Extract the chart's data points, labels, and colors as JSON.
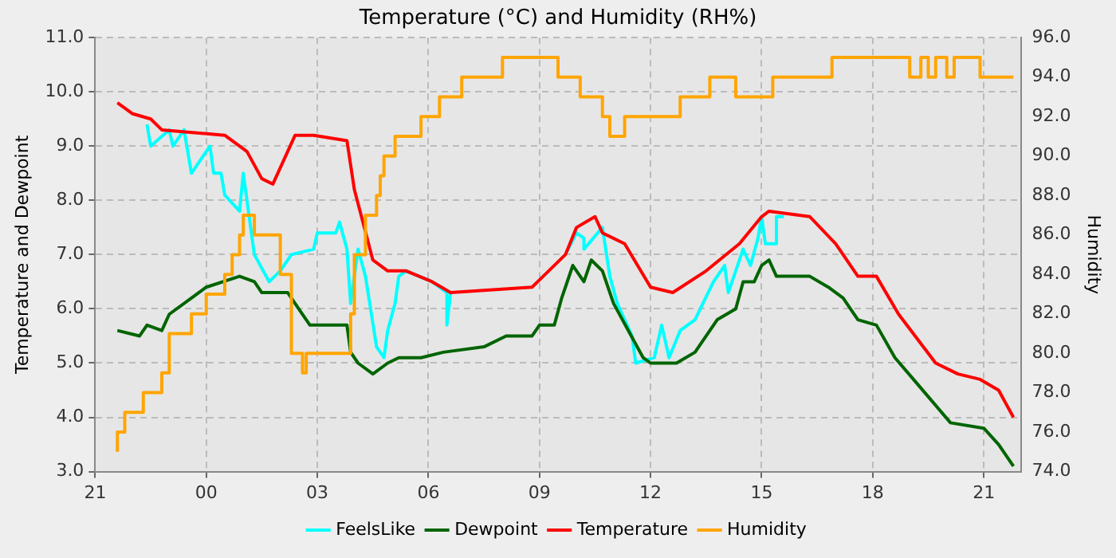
{
  "chart_data": {
    "type": "line",
    "title": "Temperature (°C) and Humidity (RH%)",
    "ylabel": "Temperature and Dewpoint",
    "y2label": "Humidity",
    "xlim": [
      "--01-01T21:00",
      "--01-02T22:00"
    ],
    "xticks": [
      {
        "value": "--01-01T21:00",
        "label": "21"
      },
      {
        "value": "--01-02T00:00",
        "label": "00"
      },
      {
        "value": "--01-02T03:00",
        "label": "03"
      },
      {
        "value": "--01-02T06:00",
        "label": "06"
      },
      {
        "value": "--01-02T09:00",
        "label": "09"
      },
      {
        "value": "--01-02T12:00",
        "label": "12"
      },
      {
        "value": "--01-02T15:00",
        "label": "15"
      },
      {
        "value": "--01-02T18:00",
        "label": "18"
      },
      {
        "value": "--01-02T21:00",
        "label": "21"
      }
    ],
    "ylim": [
      3,
      11
    ],
    "yticks": [
      {
        "value": 3,
        "label": "3.0"
      },
      {
        "value": 4,
        "label": "4.0"
      },
      {
        "value": 5,
        "label": "5.0"
      },
      {
        "value": 6,
        "label": "6.0"
      },
      {
        "value": 7,
        "label": "7.0"
      },
      {
        "value": 8,
        "label": "8.0"
      },
      {
        "value": 9,
        "label": "9.0"
      },
      {
        "value": 10,
        "label": "10.0"
      },
      {
        "value": 11,
        "label": "11.0"
      }
    ],
    "y2lim": [
      74,
      96
    ],
    "y2ticks": [
      {
        "value": 74,
        "label": "74.0"
      },
      {
        "value": 76,
        "label": "76.0"
      },
      {
        "value": 78,
        "label": "78.0"
      },
      {
        "value": 80,
        "label": "80.0"
      },
      {
        "value": 82,
        "label": "82.0"
      },
      {
        "value": 84,
        "label": "84.0"
      },
      {
        "value": 86,
        "label": "86.0"
      },
      {
        "value": 88,
        "label": "88.0"
      },
      {
        "value": 90,
        "label": "90.0"
      },
      {
        "value": 92,
        "label": "92.0"
      },
      {
        "value": 94,
        "label": "94.0"
      },
      {
        "value": 96,
        "label": "96.0"
      }
    ],
    "grid": true,
    "legend": "bottom",
    "marker": "none",
    "series": [
      {
        "name": "FeelsLike",
        "color": "#00ffff",
        "x": [
          "--01-01T22:24",
          "--01-01T22:30",
          "--01-01T23:00",
          "--01-01T23:06",
          "--01-01T23:24",
          "--01-01T23:36",
          "--01-02T00:06",
          "--01-02T00:12",
          "--01-02T00:24",
          "--01-02T00:30",
          "--01-02T00:54",
          "--01-02T01:00",
          "--01-02T01:18",
          "--01-02T01:42",
          "--01-02T02:00",
          "--01-02T02:18",
          "--01-02T02:54",
          "--01-02T03:00",
          "--01-02T03:30",
          "--01-02T03:36",
          "--01-02T03:48",
          "--01-02T03:54",
          "--01-02T04:06",
          "--01-02T04:18",
          "--01-02T04:36",
          "--01-02T04:48",
          "--01-02T04:54",
          "--01-02T05:06",
          "--01-02T05:12",
          "--01-02T05:24",
          "--01-02T06:06",
          "--01-02T06:30",
          "--01-02T06:30",
          "--01-02T06:36",
          "--01-02T08:48",
          "--01-02T09:06",
          "--01-02T09:42",
          "--01-02T10:00",
          "--01-02T10:12",
          "--01-02T10:12",
          "--01-02T10:42",
          "--01-02T10:54",
          "--01-02T11:06",
          "--01-02T11:30",
          "--01-02T11:36",
          "--01-02T12:06",
          "--01-02T12:18",
          "--01-02T12:30",
          "--01-02T12:48",
          "--01-02T13:12",
          "--01-02T13:42",
          "--01-02T14:00",
          "--01-02T14:06",
          "--01-02T14:30",
          "--01-02T14:42",
          "--01-02T14:54",
          "--01-02T15:00",
          "--01-02T15:06",
          "--01-02T15:24",
          "--01-02T15:24",
          "--01-02T15:36"
        ],
        "values": [
          9.4,
          9.0,
          9.3,
          9.0,
          9.3,
          8.5,
          9.0,
          8.5,
          8.5,
          8.1,
          7.8,
          8.5,
          7.0,
          6.5,
          6.7,
          7.0,
          7.1,
          7.4,
          7.4,
          7.6,
          7.1,
          6.1,
          7.1,
          6.6,
          5.3,
          5.1,
          5.6,
          6.1,
          6.6,
          6.7,
          6.5,
          6.3,
          5.7,
          6.3,
          null,
          null,
          7.0,
          7.4,
          7.3,
          7.1,
          7.5,
          6.6,
          6.1,
          5.5,
          5.0,
          5.1,
          5.7,
          5.1,
          5.6,
          5.8,
          6.5,
          6.8,
          6.3,
          7.1,
          6.8,
          7.3,
          7.7,
          7.2,
          7.2,
          7.7,
          7.7
        ]
      },
      {
        "name": "Dewpoint",
        "color": "#006400",
        "x": [
          "--01-01T21:36",
          "--01-01T22:12",
          "--01-01T22:24",
          "--01-01T22:48",
          "--01-01T23:00",
          "--01-01T23:36",
          "--01-02T00:00",
          "--01-02T00:54",
          "--01-02T01:18",
          "--01-02T01:30",
          "--01-02T02:12",
          "--01-02T02:36",
          "--01-02T02:48",
          "--01-02T03:48",
          "--01-02T03:54",
          "--01-02T04:06",
          "--01-02T04:30",
          "--01-02T04:54",
          "--01-02T05:12",
          "--01-02T05:48",
          "--01-02T06:24",
          "--01-02T07:30",
          "--01-02T08:06",
          "--01-02T08:48",
          "--01-02T09:00",
          "--01-02T09:24",
          "--01-02T09:36",
          "--01-02T09:54",
          "--01-02T10:12",
          "--01-02T10:24",
          "--01-02T10:42",
          "--01-02T11:00",
          "--01-02T11:24",
          "--01-02T11:48",
          "--01-02T12:00",
          "--01-02T12:42",
          "--01-02T13:12",
          "--01-02T13:48",
          "--01-02T14:18",
          "--01-02T14:30",
          "--01-02T14:48",
          "--01-02T15:00",
          "--01-02T15:12",
          "--01-02T15:24",
          "--01-02T16:18",
          "--01-02T16:48",
          "--01-02T17:12",
          "--01-02T17:36",
          "--01-02T18:06",
          "--01-02T18:36",
          "--01-02T19:06",
          "--01-02T19:36",
          "--01-02T20:06",
          "--01-02T21:00",
          "--01-02T21:24",
          "--01-02T21:48"
        ],
        "values": [
          5.6,
          5.5,
          5.7,
          5.6,
          5.9,
          6.2,
          6.4,
          6.6,
          6.5,
          6.3,
          6.3,
          5.9,
          5.7,
          5.7,
          5.2,
          5.0,
          4.8,
          5.0,
          5.1,
          5.1,
          5.2,
          5.3,
          5.5,
          5.5,
          5.7,
          5.7,
          6.2,
          6.8,
          6.5,
          6.9,
          6.7,
          6.1,
          5.6,
          5.1,
          5.0,
          5.0,
          5.2,
          5.8,
          6.0,
          6.5,
          6.5,
          6.8,
          6.9,
          6.6,
          6.6,
          6.4,
          6.2,
          5.8,
          5.7,
          5.1,
          4.7,
          4.3,
          3.9,
          3.8,
          3.5,
          3.1
        ]
      },
      {
        "name": "Temperature",
        "color": "#ff0000",
        "x": [
          "--01-01T21:36",
          "--01-01T22:00",
          "--01-01T22:30",
          "--01-01T22:48",
          "--01-02T00:30",
          "--01-02T01:06",
          "--01-02T01:30",
          "--01-02T01:48",
          "--01-02T02:24",
          "--01-02T02:54",
          "--01-02T03:48",
          "--01-02T04:00",
          "--01-02T04:30",
          "--01-02T04:54",
          "--01-02T05:24",
          "--01-02T06:06",
          "--01-02T06:36",
          "--01-02T08:48",
          "--01-02T09:06",
          "--01-02T09:42",
          "--01-02T10:00",
          "--01-02T10:30",
          "--01-02T10:42",
          "--01-02T11:18",
          "--01-02T12:00",
          "--01-02T12:36",
          "--01-02T13:30",
          "--01-02T14:24",
          "--01-02T15:00",
          "--01-02T15:12",
          "--01-02T16:18",
          "--01-02T17:00",
          "--01-02T17:36",
          "--01-02T18:06",
          "--01-02T18:42",
          "--01-02T19:42",
          "--01-02T20:18",
          "--01-02T20:54",
          "--01-02T21:24",
          "--01-02T21:48"
        ],
        "values": [
          9.8,
          9.6,
          9.5,
          9.3,
          9.2,
          8.9,
          8.4,
          8.3,
          9.2,
          9.2,
          9.1,
          8.2,
          6.9,
          6.7,
          6.7,
          6.5,
          6.3,
          6.4,
          6.6,
          7.0,
          7.5,
          7.7,
          7.4,
          7.2,
          6.4,
          6.3,
          6.7,
          7.2,
          7.7,
          7.8,
          7.7,
          7.2,
          6.6,
          6.6,
          5.9,
          5.0,
          4.8,
          4.7,
          4.5,
          4.0
        ]
      },
      {
        "name": "Humidity",
        "color": "#ffa500",
        "type": "step",
        "axis": "y2",
        "x": [
          "--01-01T21:36",
          "--01-01T21:48",
          "--01-01T22:18",
          "--01-01T22:48",
          "--01-01T23:00",
          "--01-01T23:36",
          "--01-02T00:00",
          "--01-02T00:30",
          "--01-02T00:42",
          "--01-02T00:54",
          "--01-02T01:00",
          "--01-02T01:18",
          "--01-02T02:00",
          "--01-02T02:18",
          "--01-02T02:36",
          "--01-02T02:42",
          "--01-02T03:54",
          "--01-02T04:00",
          "--01-02T04:18",
          "--01-02T04:36",
          "--01-02T04:42",
          "--01-02T04:48",
          "--01-02T05:06",
          "--01-02T05:48",
          "--01-02T06:18",
          "--01-02T06:54",
          "--01-02T08:00",
          "--01-02T09:30",
          "--01-02T10:06",
          "--01-02T10:42",
          "--01-02T10:54",
          "--01-02T11:18",
          "--01-02T12:48",
          "--01-02T13:36",
          "--01-02T14:18",
          "--01-02T15:18",
          "--01-02T16:54",
          "--01-02T19:00",
          "--01-02T19:18",
          "--01-02T19:30",
          "--01-02T19:42",
          "--01-02T20:00",
          "--01-02T20:12",
          "--01-02T20:54",
          "--01-02T21:18",
          "--01-02T21:48"
        ],
        "values": [
          75,
          76,
          77,
          78,
          79,
          81,
          82,
          83,
          84,
          85,
          86,
          87,
          86,
          84,
          80,
          79,
          80,
          82,
          85,
          87,
          88,
          89,
          90,
          91,
          92,
          93,
          94,
          95,
          94,
          93,
          92,
          91,
          92,
          93,
          94,
          93,
          94,
          95,
          94,
          95,
          94,
          95,
          94,
          95,
          94,
          94
        ]
      }
    ]
  }
}
